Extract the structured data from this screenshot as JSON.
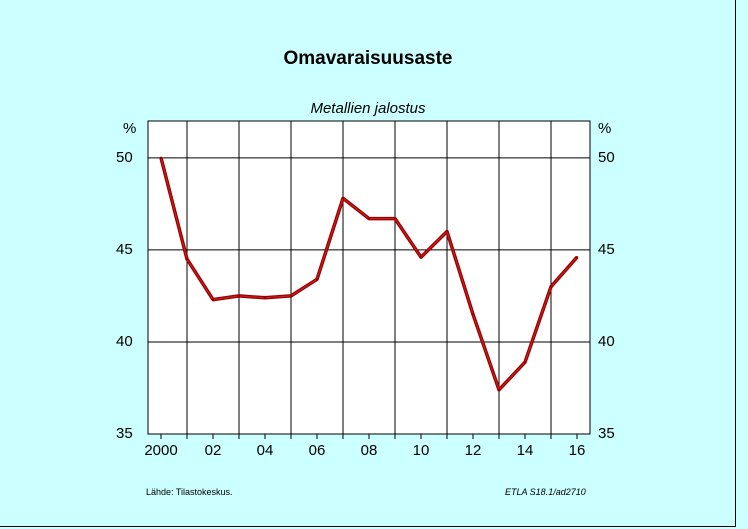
{
  "chart_data": {
    "type": "line",
    "title": "Omavaraisuusaste",
    "subtitle": "Metallien jalostus",
    "y_unit_left": "%",
    "y_unit_right": "%",
    "x": [
      2000,
      2001,
      2002,
      2003,
      2004,
      2005,
      2006,
      2007,
      2008,
      2009,
      2010,
      2011,
      2012,
      2013,
      2014,
      2015,
      2016
    ],
    "x_tick_labels": [
      "2000",
      "02",
      "04",
      "06",
      "08",
      "10",
      "12",
      "14",
      "16"
    ],
    "y_ticks": [
      35,
      40,
      45,
      50
    ],
    "ylim": [
      35,
      52
    ],
    "grid": true,
    "series": [
      {
        "values": [
          50.0,
          44.5,
          42.3,
          42.5,
          42.4,
          42.5,
          43.4,
          47.8,
          46.7,
          46.7,
          44.6,
          46.0,
          41.5,
          37.4,
          38.9,
          43.0,
          44.6
        ],
        "color": "#990000"
      }
    ],
    "annotation": "*"
  },
  "footer": {
    "source": "Lähde:   Tilastokeskus.",
    "code": "ETLA S18.1/ad2710"
  }
}
